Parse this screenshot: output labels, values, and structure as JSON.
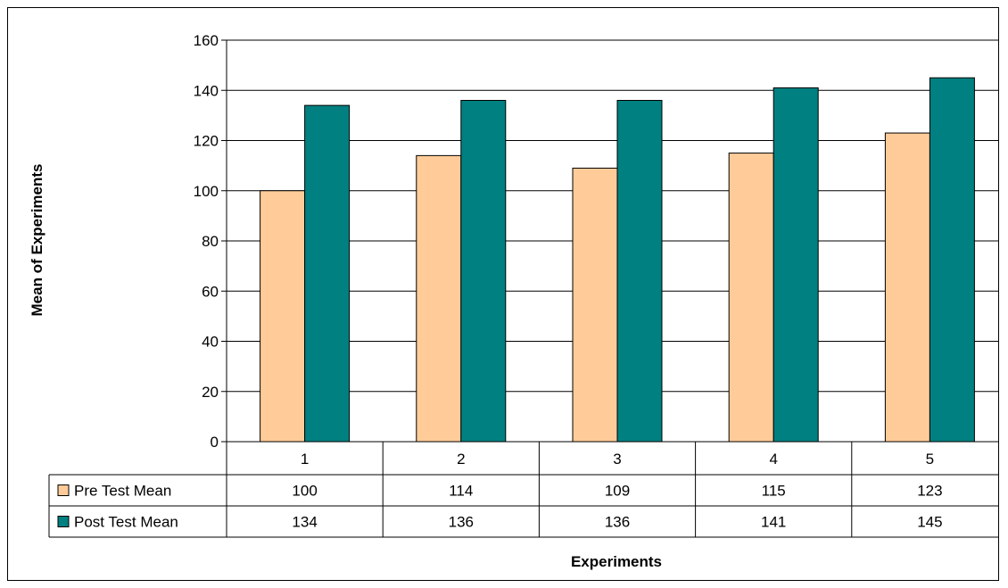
{
  "chart_data": {
    "type": "bar",
    "categories": [
      "1",
      "2",
      "3",
      "4",
      "5"
    ],
    "series": [
      {
        "name": "Pre Test Mean",
        "values": [
          100,
          114,
          109,
          115,
          123
        ],
        "color": "#FFCC99"
      },
      {
        "name": "Post Test Mean",
        "values": [
          134,
          136,
          136,
          141,
          145
        ],
        "color": "#008080"
      }
    ],
    "table_values": [
      [
        "100",
        "114",
        "109",
        "115",
        "123"
      ],
      [
        "134",
        "136",
        "136",
        "141",
        "145"
      ]
    ],
    "xlabel": "Experiments",
    "ylabel": "Mean of Experiments",
    "ylim": [
      0,
      160
    ],
    "yticks": [
      0,
      20,
      40,
      60,
      80,
      100,
      120,
      140,
      160
    ],
    "grid": true,
    "legend_placement": "data-table"
  }
}
